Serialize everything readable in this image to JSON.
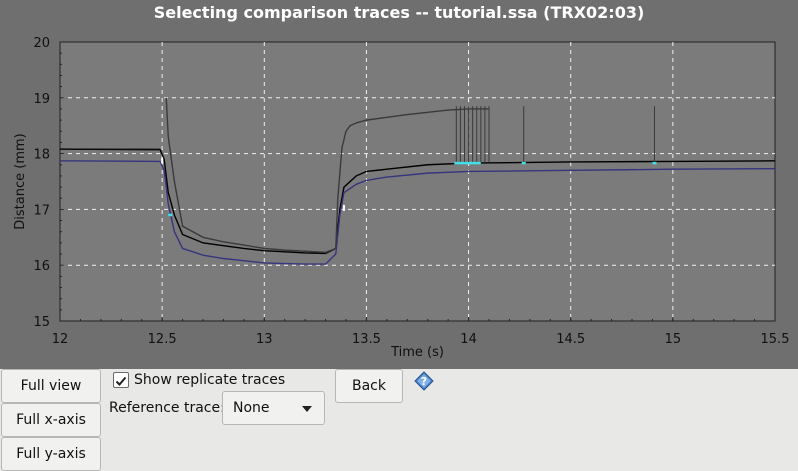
{
  "chart_data": {
    "type": "line",
    "title": "Selecting comparison traces -- tutorial.ssa (TRX02:03)",
    "xlabel": "Time (s)",
    "ylabel": "Distance (mm)",
    "xlim": [
      12,
      15.5
    ],
    "ylim": [
      15,
      20
    ],
    "x_ticks": [
      "12",
      "12.5",
      "13",
      "13.5",
      "14",
      "14.5",
      "15",
      "15.5"
    ],
    "y_ticks": [
      "15",
      "16",
      "17",
      "18",
      "19",
      "20"
    ],
    "grid": true,
    "series": [
      {
        "color": "#000000",
        "x": [
          12.0,
          12.49,
          12.51,
          12.53,
          12.56,
          12.6,
          12.7,
          12.8,
          12.9,
          13.0,
          13.1,
          13.2,
          13.3,
          13.35,
          13.37,
          13.39,
          13.45,
          13.5,
          13.6,
          13.8,
          14.0,
          14.5,
          15.0,
          15.5
        ],
        "y": [
          18.08,
          18.07,
          17.9,
          17.3,
          16.9,
          16.55,
          16.4,
          16.35,
          16.3,
          16.26,
          16.24,
          16.22,
          16.21,
          16.3,
          17.0,
          17.4,
          17.6,
          17.68,
          17.72,
          17.8,
          17.83,
          17.85,
          17.86,
          17.87
        ]
      },
      {
        "color": "#37357e",
        "x": [
          12.0,
          12.49,
          12.51,
          12.53,
          12.56,
          12.6,
          12.7,
          12.8,
          12.9,
          13.0,
          13.1,
          13.2,
          13.3,
          13.35,
          13.37,
          13.39,
          13.45,
          13.5,
          13.6,
          13.8,
          14.0,
          14.5,
          15.0,
          15.5
        ],
        "y": [
          17.87,
          17.86,
          17.7,
          17.1,
          16.6,
          16.3,
          16.18,
          16.12,
          16.08,
          16.04,
          16.03,
          16.02,
          16.02,
          16.2,
          16.9,
          17.3,
          17.45,
          17.52,
          17.58,
          17.65,
          17.68,
          17.7,
          17.72,
          17.73
        ]
      },
      {
        "color": "#3a3a3a",
        "x": [
          12.52,
          12.53,
          12.56,
          12.6,
          12.7,
          12.8,
          12.9,
          13.0,
          13.1,
          13.2,
          13.3,
          13.35,
          13.36,
          13.38,
          13.4,
          13.42,
          13.45,
          13.5,
          13.6,
          13.7,
          13.8,
          13.9,
          14.0,
          14.05,
          14.1
        ],
        "y": [
          19.0,
          18.3,
          17.5,
          16.7,
          16.5,
          16.42,
          16.36,
          16.3,
          16.27,
          16.25,
          16.23,
          16.3,
          17.2,
          18.1,
          18.4,
          18.5,
          18.55,
          18.6,
          18.65,
          18.7,
          18.74,
          18.78,
          18.8,
          18.8,
          18.8
        ]
      }
    ],
    "highlight_color": "#40e0e8",
    "highlight_segments_x": [
      [
        12.53,
        12.55
      ],
      [
        13.93,
        14.06
      ],
      [
        14.26,
        14.28
      ],
      [
        14.9,
        14.92
      ]
    ]
  },
  "controls": {
    "full_view": "Full view",
    "full_x_axis": "Full x-axis",
    "full_y_axis": "Full y-axis",
    "show_replicate_traces": "Show replicate traces",
    "show_replicate_checked": true,
    "back": "Back",
    "reference_trace_label": "Reference trace:",
    "reference_trace_value": "None"
  },
  "colors": {
    "plot_bg": "#7b7b7b",
    "outer_bg": "#6f6f6f",
    "grid": "#f2f2f2",
    "panel_bg": "#e8e8e7"
  }
}
